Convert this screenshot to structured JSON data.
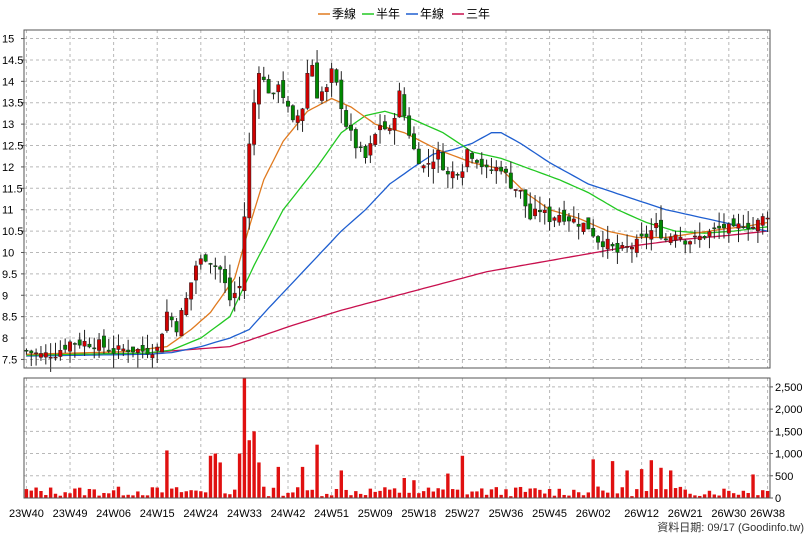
{
  "legend": [
    {
      "label": "季線",
      "color": "#e07a1f"
    },
    {
      "label": "半年",
      "color": "#22c822"
    },
    {
      "label": "年線",
      "color": "#1f5fd0"
    },
    {
      "label": "三年",
      "color": "#c8104e"
    }
  ],
  "footer": "資料日期: 09/17  (Goodinfo.tw)",
  "chart_data": {
    "type": "candlestick",
    "price_axis": {
      "ticks": [
        "7.5",
        "8",
        "8.5",
        "9",
        "9.5",
        "10",
        "10.5",
        "11",
        "11.5",
        "12",
        "12.5",
        "13",
        "13.5",
        "14",
        "14.5",
        "15"
      ],
      "ylim": [
        7.3,
        15.2
      ]
    },
    "volume_axis": {
      "ticks": [
        "0",
        "500",
        "1,000",
        "1,500",
        "2,000",
        "2,500"
      ],
      "ylim": [
        0,
        2700
      ]
    },
    "x_labels": [
      "23W40",
      "23W49",
      "24W06",
      "24W15",
      "24W24",
      "24W33",
      "24W42",
      "24W51",
      "25W09",
      "25W18",
      "25W27",
      "25W36",
      "25W45",
      "26W02",
      "26W12",
      "26W21",
      "26W30",
      "26W38"
    ],
    "x_label_positions": [
      0,
      9,
      18,
      27,
      36,
      45,
      54,
      63,
      72,
      81,
      90,
      99,
      108,
      117,
      127,
      136,
      145,
      153
    ],
    "n_weeks": 154,
    "close_anchors": [
      [
        0,
        7.7
      ],
      [
        3,
        7.6
      ],
      [
        6,
        7.65
      ],
      [
        9,
        7.9
      ],
      [
        12,
        7.9
      ],
      [
        15,
        7.85
      ],
      [
        18,
        7.7
      ],
      [
        21,
        7.75
      ],
      [
        24,
        7.7
      ],
      [
        27,
        7.75
      ],
      [
        29,
        8.6
      ],
      [
        31,
        8.25
      ],
      [
        33,
        8.9
      ],
      [
        35,
        9.7
      ],
      [
        37,
        9.9
      ],
      [
        40,
        9.6
      ],
      [
        42,
        8.9
      ],
      [
        44,
        9.2
      ],
      [
        46,
        12.5
      ],
      [
        47,
        13.5
      ],
      [
        48,
        14.3
      ],
      [
        49,
        14.0
      ],
      [
        51,
        13.6
      ],
      [
        52,
        14.0
      ],
      [
        55,
        13.0
      ],
      [
        57,
        13.4
      ],
      [
        58,
        14.2
      ],
      [
        59,
        14.4
      ],
      [
        60,
        13.7
      ],
      [
        62,
        13.8
      ],
      [
        63,
        14.2
      ],
      [
        64,
        13.9
      ],
      [
        66,
        13.0
      ],
      [
        68,
        12.5
      ],
      [
        70,
        12.2
      ],
      [
        73,
        13.0
      ],
      [
        75,
        12.8
      ],
      [
        77,
        13.7
      ],
      [
        78,
        13.2
      ],
      [
        80,
        12.4
      ],
      [
        82,
        12.0
      ],
      [
        85,
        12.3
      ],
      [
        87,
        11.8
      ],
      [
        90,
        12.0
      ],
      [
        91,
        12.4
      ],
      [
        93,
        12.2
      ],
      [
        95,
        11.9
      ],
      [
        98,
        12.0
      ],
      [
        100,
        11.6
      ],
      [
        102,
        11.4
      ],
      [
        104,
        10.8
      ],
      [
        106,
        11.0
      ],
      [
        108,
        10.8
      ],
      [
        110,
        10.9
      ],
      [
        112,
        10.8
      ],
      [
        114,
        10.7
      ],
      [
        116,
        10.6
      ],
      [
        118,
        10.3
      ],
      [
        120,
        10.2
      ],
      [
        122,
        10.0
      ],
      [
        124,
        10.1
      ],
      [
        126,
        10.2
      ],
      [
        128,
        10.4
      ],
      [
        130,
        10.6
      ],
      [
        132,
        10.3
      ],
      [
        134,
        10.5
      ],
      [
        136,
        10.3
      ],
      [
        138,
        10.3
      ],
      [
        140,
        10.4
      ],
      [
        142,
        10.5
      ],
      [
        144,
        10.6
      ],
      [
        146,
        10.5
      ],
      [
        148,
        10.7
      ],
      [
        150,
        10.6
      ],
      [
        153,
        10.9
      ]
    ],
    "volume_spikes": [
      [
        29,
        1070
      ],
      [
        38,
        950
      ],
      [
        39,
        1000
      ],
      [
        40,
        800
      ],
      [
        44,
        1000
      ],
      [
        45,
        2700
      ],
      [
        46,
        1300
      ],
      [
        47,
        1500
      ],
      [
        48,
        800
      ],
      [
        52,
        700
      ],
      [
        57,
        700
      ],
      [
        60,
        1200
      ],
      [
        65,
        620
      ],
      [
        78,
        450
      ],
      [
        80,
        400
      ],
      [
        87,
        550
      ],
      [
        90,
        950
      ],
      [
        117,
        870
      ],
      [
        121,
        830
      ],
      [
        124,
        620
      ],
      [
        127,
        650
      ],
      [
        129,
        850
      ],
      [
        131,
        680
      ],
      [
        133,
        620
      ],
      [
        150,
        530
      ]
    ],
    "ma_anchors": {
      "q": [
        [
          0,
          7.62
        ],
        [
          20,
          7.68
        ],
        [
          29,
          7.8
        ],
        [
          34,
          8.2
        ],
        [
          38,
          8.6
        ],
        [
          43,
          9.4
        ],
        [
          46,
          10.6
        ],
        [
          49,
          11.7
        ],
        [
          53,
          12.6
        ],
        [
          58,
          13.3
        ],
        [
          63,
          13.6
        ],
        [
          67,
          13.4
        ],
        [
          72,
          13.0
        ],
        [
          78,
          12.8
        ],
        [
          85,
          12.4
        ],
        [
          92,
          12.1
        ],
        [
          98,
          11.95
        ],
        [
          103,
          11.4
        ],
        [
          108,
          11.0
        ],
        [
          114,
          10.8
        ],
        [
          120,
          10.5
        ],
        [
          126,
          10.35
        ],
        [
          132,
          10.35
        ],
        [
          138,
          10.45
        ],
        [
          144,
          10.55
        ],
        [
          148,
          10.6
        ],
        [
          153,
          10.7
        ]
      ],
      "h": [
        [
          0,
          7.6
        ],
        [
          25,
          7.65
        ],
        [
          30,
          7.72
        ],
        [
          36,
          8.0
        ],
        [
          42,
          8.5
        ],
        [
          47,
          9.7
        ],
        [
          53,
          11.0
        ],
        [
          60,
          12.0
        ],
        [
          65,
          12.8
        ],
        [
          70,
          13.2
        ],
        [
          74,
          13.3
        ],
        [
          80,
          13.1
        ],
        [
          86,
          12.8
        ],
        [
          92,
          12.35
        ],
        [
          98,
          12.2
        ],
        [
          104,
          11.95
        ],
        [
          110,
          11.7
        ],
        [
          116,
          11.4
        ],
        [
          122,
          11.0
        ],
        [
          128,
          10.7
        ],
        [
          134,
          10.5
        ],
        [
          140,
          10.45
        ],
        [
          146,
          10.5
        ],
        [
          153,
          10.6
        ]
      ],
      "y": [
        [
          0,
          7.58
        ],
        [
          25,
          7.62
        ],
        [
          30,
          7.66
        ],
        [
          36,
          7.8
        ],
        [
          42,
          8.0
        ],
        [
          46,
          8.2
        ],
        [
          50,
          8.7
        ],
        [
          55,
          9.3
        ],
        [
          60,
          9.9
        ],
        [
          65,
          10.5
        ],
        [
          70,
          11.0
        ],
        [
          75,
          11.6
        ],
        [
          80,
          12.0
        ],
        [
          84,
          12.3
        ],
        [
          88,
          12.4
        ],
        [
          92,
          12.55
        ],
        [
          96,
          12.8
        ],
        [
          98,
          12.8
        ],
        [
          102,
          12.55
        ],
        [
          108,
          12.1
        ],
        [
          116,
          11.6
        ],
        [
          124,
          11.3
        ],
        [
          132,
          11.0
        ],
        [
          140,
          10.8
        ],
        [
          148,
          10.6
        ],
        [
          153,
          10.5
        ]
      ],
      "t": [
        [
          0,
          7.6
        ],
        [
          25,
          7.65
        ],
        [
          30,
          7.7
        ],
        [
          36,
          7.75
        ],
        [
          42,
          7.8
        ],
        [
          46,
          7.95
        ],
        [
          55,
          8.3
        ],
        [
          65,
          8.65
        ],
        [
          75,
          8.95
        ],
        [
          85,
          9.25
        ],
        [
          95,
          9.55
        ],
        [
          105,
          9.75
        ],
        [
          115,
          9.95
        ],
        [
          125,
          10.15
        ],
        [
          135,
          10.3
        ],
        [
          145,
          10.4
        ],
        [
          153,
          10.5
        ]
      ]
    }
  }
}
